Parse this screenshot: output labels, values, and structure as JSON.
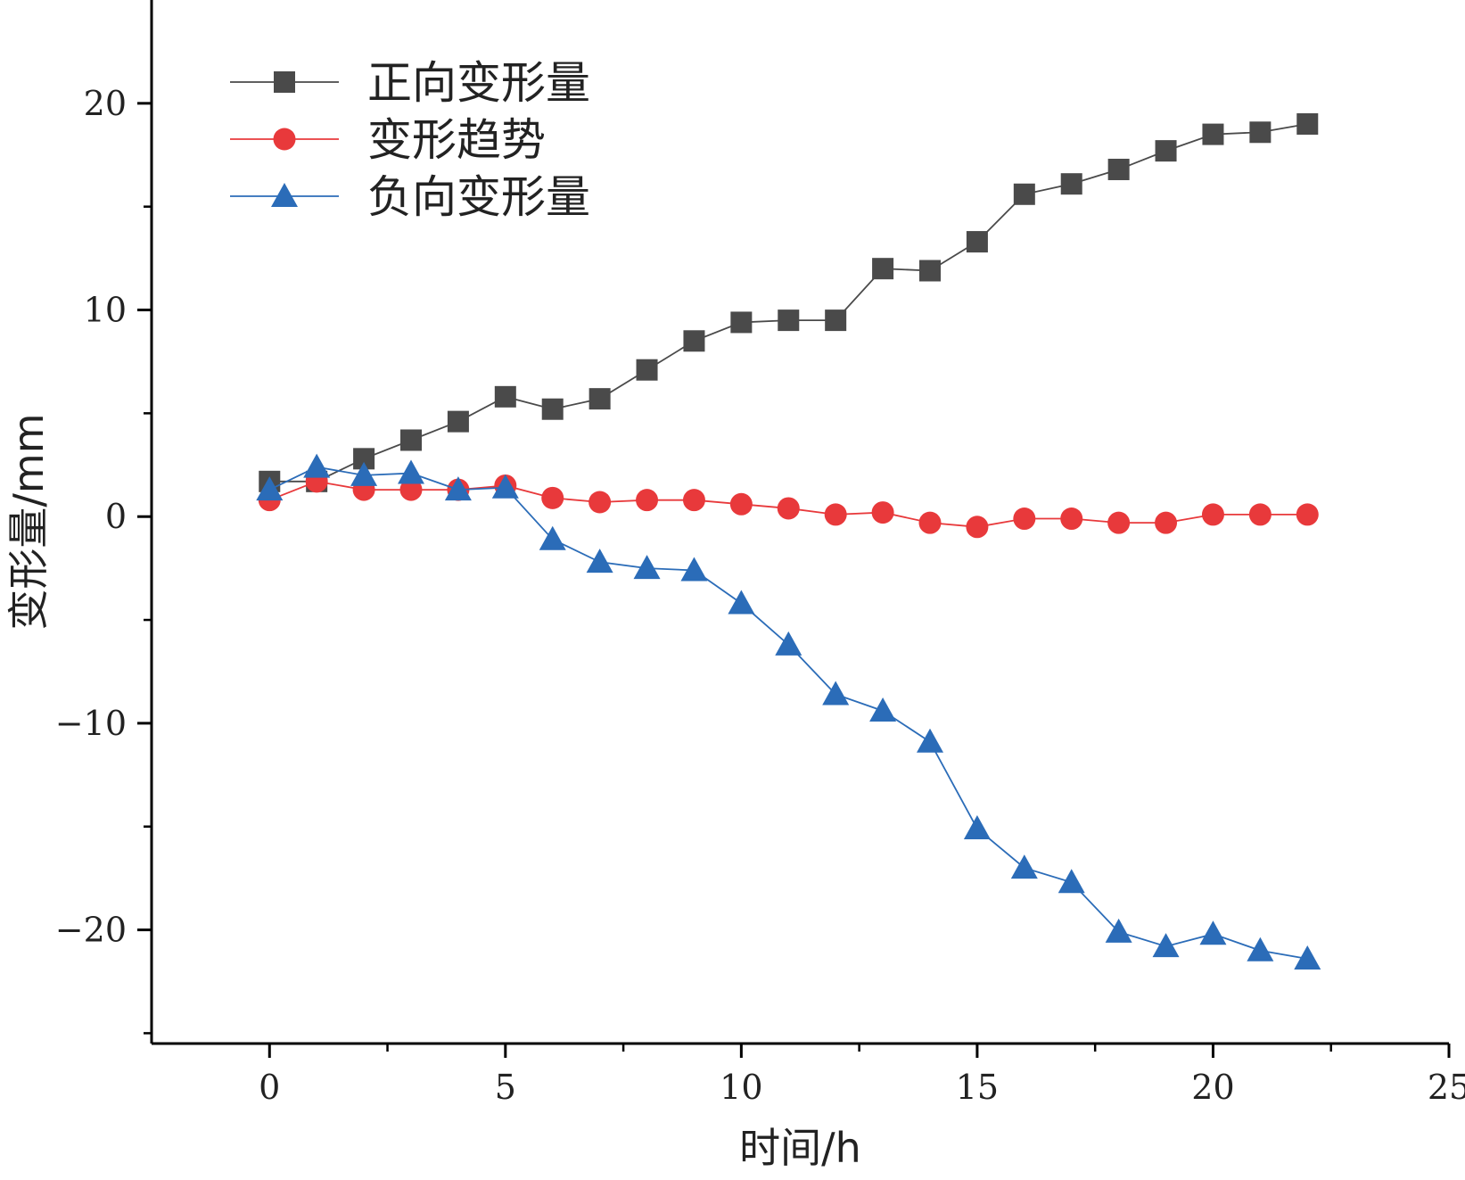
{
  "chart_data": {
    "type": "line",
    "xlabel": "时间/h",
    "ylabel": "变形量/mm",
    "xlim": [
      -2.5,
      25
    ],
    "ylim": [
      -25.5,
      25
    ],
    "x_ticks": [
      0,
      5,
      10,
      15,
      20,
      25
    ],
    "x_tick_labels": [
      "0",
      "5",
      "10",
      "15",
      "20",
      "25"
    ],
    "y_ticks": [
      -20,
      -10,
      0,
      10,
      20
    ],
    "y_tick_labels": [
      "−20",
      "−10",
      "0",
      "10",
      "20"
    ],
    "grid": false,
    "legend_position": "top-left",
    "x": [
      0,
      1,
      2,
      3,
      4,
      5,
      6,
      7,
      8,
      9,
      10,
      11,
      12,
      13,
      14,
      15,
      16,
      17,
      18,
      19,
      20,
      21,
      22
    ],
    "series": [
      {
        "name": "正向变形量",
        "marker": "square",
        "color": "#4a4a4a",
        "values": [
          1.7,
          1.7,
          2.8,
          3.7,
          4.6,
          5.8,
          5.2,
          5.7,
          7.1,
          8.5,
          9.4,
          9.5,
          9.5,
          12.0,
          11.9,
          13.3,
          15.6,
          16.1,
          16.8,
          17.7,
          18.5,
          18.6,
          19.0
        ]
      },
      {
        "name": "变形趋势",
        "marker": "circle",
        "color": "#e8393b",
        "values": [
          0.8,
          1.7,
          1.3,
          1.3,
          1.3,
          1.5,
          0.9,
          0.7,
          0.8,
          0.8,
          0.6,
          0.4,
          0.1,
          0.2,
          -0.3,
          -0.5,
          -0.1,
          -0.1,
          -0.3,
          -0.3,
          0.1,
          0.1,
          0.1
        ]
      },
      {
        "name": "负向变形量",
        "marker": "triangle",
        "color": "#2b6cb8",
        "values": [
          1.3,
          2.4,
          2.0,
          2.1,
          1.3,
          1.4,
          -1.1,
          -2.2,
          -2.5,
          -2.6,
          -4.2,
          -6.2,
          -8.6,
          -9.4,
          -10.9,
          -15.1,
          -17.0,
          -17.7,
          -20.1,
          -20.8,
          -20.2,
          -21.0,
          -21.4
        ]
      }
    ]
  }
}
